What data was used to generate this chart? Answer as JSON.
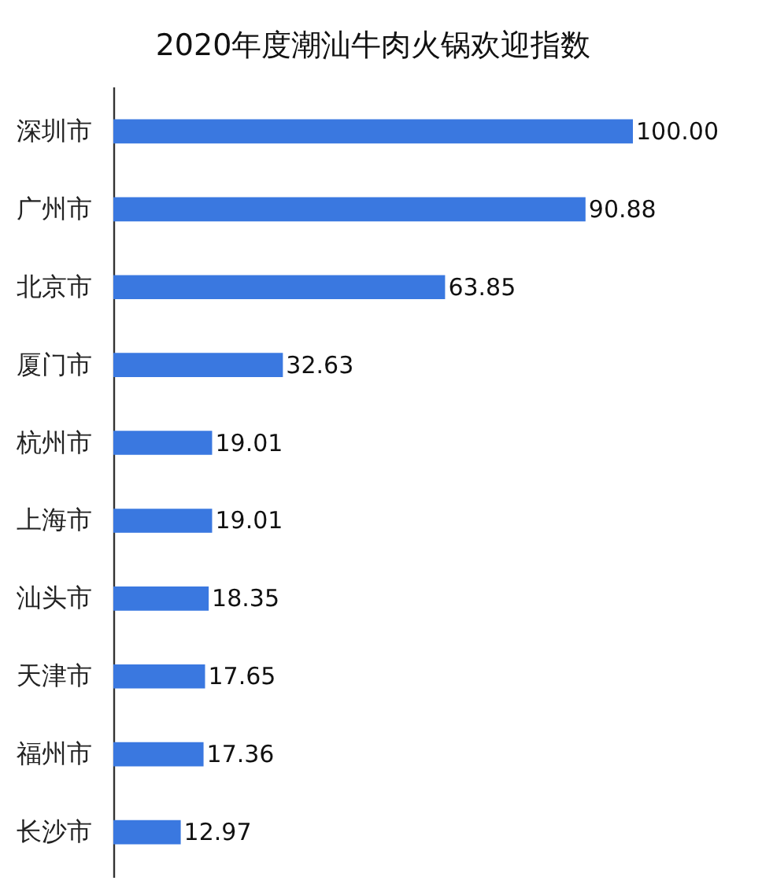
{
  "chart_data": {
    "type": "bar",
    "orientation": "horizontal",
    "title": "2020年度潮汕牛肉火锅欢迎指数",
    "categories": [
      "深圳市",
      "广州市",
      "北京市",
      "厦门市",
      "杭州市",
      "上海市",
      "汕头市",
      "天津市",
      "福州市",
      "长沙市"
    ],
    "values": [
      100.0,
      90.88,
      63.85,
      32.63,
      19.01,
      19.01,
      18.35,
      17.65,
      17.36,
      12.97
    ],
    "value_labels": [
      "100.00",
      "90.88",
      "63.85",
      "32.63",
      "19.01",
      "19.01",
      "18.35",
      "17.65",
      "17.36",
      "12.97"
    ],
    "color": "#3a78e0",
    "tick_labels": "y"
  }
}
